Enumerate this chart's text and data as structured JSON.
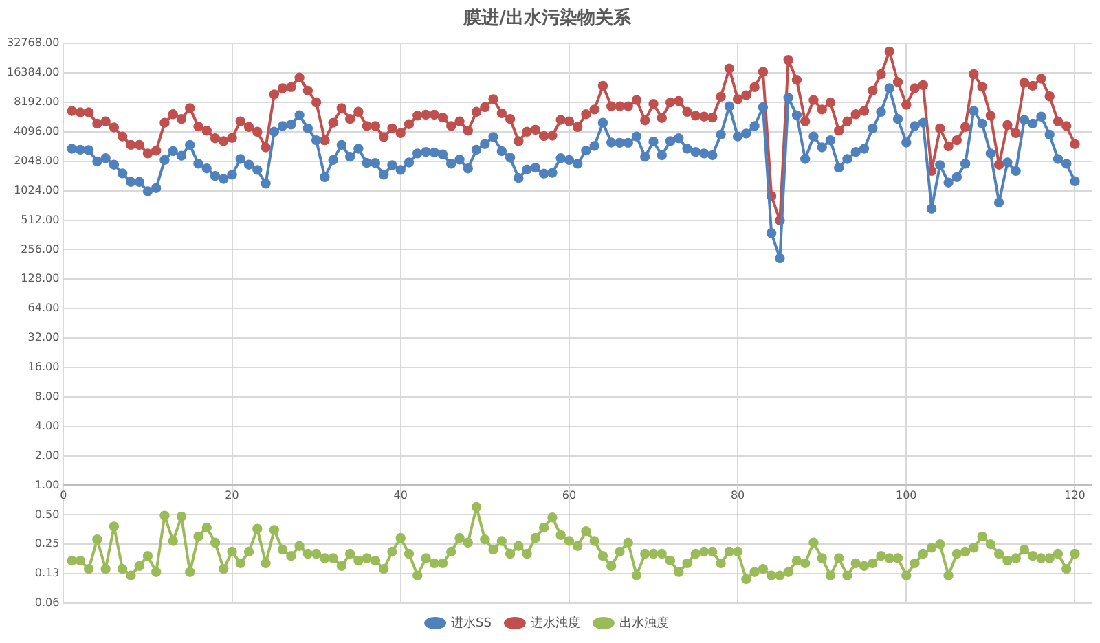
{
  "chart_data": {
    "type": "line",
    "title": "膜进/出水污染物关系",
    "x": [
      1,
      2,
      3,
      4,
      5,
      6,
      7,
      8,
      9,
      10,
      11,
      12,
      13,
      14,
      15,
      16,
      17,
      18,
      19,
      20,
      21,
      22,
      23,
      24,
      25,
      26,
      27,
      28,
      29,
      30,
      31,
      32,
      33,
      34,
      35,
      36,
      37,
      38,
      39,
      40,
      41,
      42,
      43,
      44,
      45,
      46,
      47,
      48,
      49,
      50,
      51,
      52,
      53,
      54,
      55,
      56,
      57,
      58,
      59,
      60,
      61,
      62,
      63,
      64,
      65,
      66,
      67,
      68,
      69,
      70,
      71,
      72,
      73,
      74,
      75,
      76,
      77,
      78,
      79,
      80,
      81,
      82,
      83,
      84,
      85,
      86,
      87,
      88,
      89,
      90,
      91,
      92,
      93,
      94,
      95,
      96,
      97,
      98,
      99,
      100,
      101,
      102,
      103,
      104,
      105,
      106,
      107,
      108,
      109,
      110,
      111,
      112,
      113,
      114,
      115,
      116,
      117,
      118,
      119,
      120
    ],
    "series": [
      {
        "name": "进水SS",
        "color": "#4f81bd",
        "values": [
          2750,
          2690,
          2660,
          2040,
          2200,
          1890,
          1540,
          1260,
          1260,
          1010,
          1090,
          2110,
          2600,
          2330,
          3010,
          1930,
          1730,
          1450,
          1350,
          1490,
          2160,
          1890,
          1670,
          1210,
          4100,
          4690,
          4850,
          6060,
          4440,
          3360,
          1410,
          2110,
          3010,
          2280,
          2750,
          1970,
          1970,
          1490,
          1870,
          1670,
          1990,
          2460,
          2550,
          2520,
          2410,
          1930,
          2130,
          1730,
          2690,
          3070,
          3630,
          2600,
          2230,
          1380,
          1690,
          1760,
          1530,
          1560,
          2200,
          2110,
          1930,
          2630,
          2940,
          5070,
          3180,
          3160,
          3160,
          3670,
          2280,
          3250,
          2360,
          3290,
          3520,
          2750,
          2550,
          2460,
          2360,
          3840,
          7480,
          3670,
          3930,
          4690,
          7310,
          377,
          209,
          9130,
          6060,
          2160,
          3670,
          2840,
          3360,
          1760,
          2160,
          2550,
          2750,
          4440,
          6550,
          11400,
          5540,
          3180,
          4690,
          5070,
          672,
          1870,
          1240,
          1410,
          1930,
          6690,
          4960,
          2460,
          776,
          1990,
          1630,
          5420,
          4960,
          5860,
          3840,
          2160,
          1930,
          1280
        ]
      },
      {
        "name": "进水浊度",
        "color": "#c0504d",
        "values": [
          6690,
          6470,
          6470,
          4960,
          5240,
          4540,
          3670,
          3010,
          3010,
          2460,
          2630,
          5070,
          6190,
          5540,
          7150,
          4640,
          4200,
          3520,
          3290,
          3550,
          5240,
          4590,
          4100,
          2840,
          9870,
          11400,
          11700,
          14700,
          10800,
          8180,
          3360,
          5070,
          7150,
          5540,
          6550,
          4690,
          4690,
          3630,
          4440,
          3970,
          4900,
          5990,
          6120,
          6120,
          5730,
          4690,
          5240,
          4200,
          6550,
          7310,
          8830,
          6330,
          5540,
          3290,
          4100,
          4290,
          3710,
          3740,
          5420,
          5240,
          4590,
          6190,
          6920,
          12100,
          7480,
          7480,
          7480,
          8640,
          5360,
          7910,
          5670,
          8180,
          8450,
          6550,
          5990,
          5860,
          5730,
          9340,
          18200,
          8830,
          9660,
          11700,
          16800,
          906,
          509,
          22200,
          13900,
          5240,
          8640,
          6920,
          8180,
          4200,
          5240,
          6190,
          6690,
          10800,
          15900,
          27100,
          13200,
          7730,
          11400,
          12300,
          1630,
          4440,
          2910,
          3360,
          4590,
          15900,
          11800,
          5990,
          1890,
          4800,
          3970,
          13000,
          12100,
          14300,
          9440,
          5240,
          4690,
          3070
        ]
      },
      {
        "name": "出水浊度",
        "color": "#9bbb59",
        "values": [
          0.17,
          0.17,
          0.14,
          0.28,
          0.14,
          0.38,
          0.14,
          0.12,
          0.15,
          0.19,
          0.13,
          0.49,
          0.27,
          0.48,
          0.13,
          0.3,
          0.37,
          0.26,
          0.14,
          0.21,
          0.16,
          0.21,
          0.36,
          0.16,
          0.35,
          0.22,
          0.19,
          0.24,
          0.2,
          0.2,
          0.18,
          0.18,
          0.15,
          0.2,
          0.17,
          0.18,
          0.17,
          0.14,
          0.21,
          0.29,
          0.2,
          0.12,
          0.18,
          0.16,
          0.16,
          0.21,
          0.29,
          0.26,
          0.6,
          0.28,
          0.22,
          0.27,
          0.2,
          0.24,
          0.2,
          0.29,
          0.37,
          0.47,
          0.31,
          0.27,
          0.24,
          0.34,
          0.27,
          0.19,
          0.15,
          0.21,
          0.26,
          0.12,
          0.2,
          0.2,
          0.2,
          0.17,
          0.13,
          0.16,
          0.2,
          0.21,
          0.21,
          0.16,
          0.21,
          0.21,
          0.11,
          0.13,
          0.14,
          0.12,
          0.12,
          0.13,
          0.17,
          0.16,
          0.26,
          0.18,
          0.12,
          0.18,
          0.12,
          0.16,
          0.15,
          0.16,
          0.19,
          0.18,
          0.18,
          0.12,
          0.16,
          0.2,
          0.23,
          0.25,
          0.12,
          0.2,
          0.21,
          0.23,
          0.3,
          0.25,
          0.2,
          0.17,
          0.18,
          0.22,
          0.19,
          0.18,
          0.18,
          0.2,
          0.14,
          0.2
        ]
      }
    ],
    "xlim": [
      0,
      122
    ],
    "xticks": [
      0,
      20,
      40,
      60,
      80,
      100,
      120
    ],
    "ylim": [
      0.0625,
      32768
    ],
    "yticks": [
      {
        "value": 0.0625,
        "label": "0.06"
      },
      {
        "value": 0.125,
        "label": "0.13"
      },
      {
        "value": 0.25,
        "label": "0.25"
      },
      {
        "value": 0.5,
        "label": "0.50"
      },
      {
        "value": 1,
        "label": "1.00"
      },
      {
        "value": 2,
        "label": "2.00"
      },
      {
        "value": 4,
        "label": "4.00"
      },
      {
        "value": 8,
        "label": "8.00"
      },
      {
        "value": 16,
        "label": "16.00"
      },
      {
        "value": 32,
        "label": "32.00"
      },
      {
        "value": 64,
        "label": "64.00"
      },
      {
        "value": 128,
        "label": "128.00"
      },
      {
        "value": 256,
        "label": "256.00"
      },
      {
        "value": 512,
        "label": "512.00"
      },
      {
        "value": 1024,
        "label": "1024.00"
      },
      {
        "value": 2048,
        "label": "2048.00"
      },
      {
        "value": 4096,
        "label": "4096.00"
      },
      {
        "value": 8192,
        "label": "8192.00"
      },
      {
        "value": 16384,
        "label": "16384.00"
      },
      {
        "value": 32768,
        "label": "32768.00"
      }
    ],
    "log": "y",
    "grid": true,
    "legend": "bottom",
    "marker": "circle",
    "line_style": "solid"
  }
}
